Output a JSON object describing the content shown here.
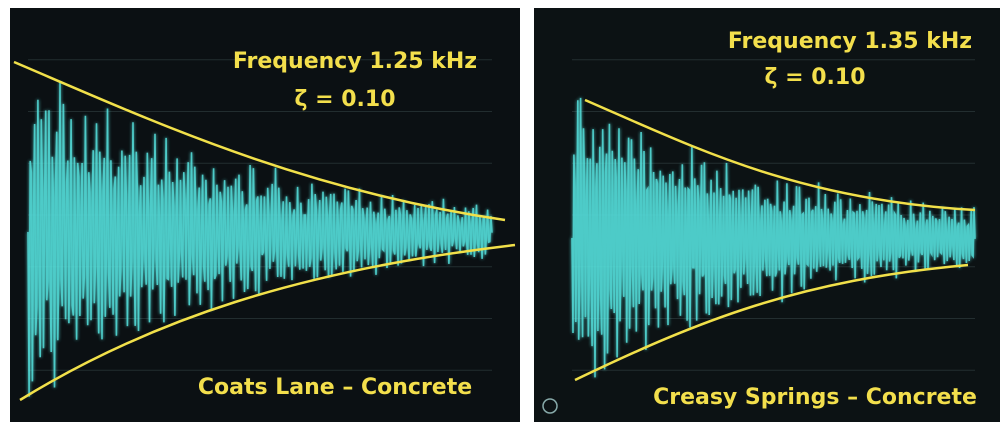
{
  "panels": [
    {
      "frequency": "Frequency  1.25 kHz",
      "damping": "ζ = 0.10",
      "label": "Coats Lane – Concrete"
    },
    {
      "frequency": "Frequency  1.35 kHz",
      "damping": "ζ = 0.10",
      "label": "Creasy Springs – Concrete"
    }
  ]
}
